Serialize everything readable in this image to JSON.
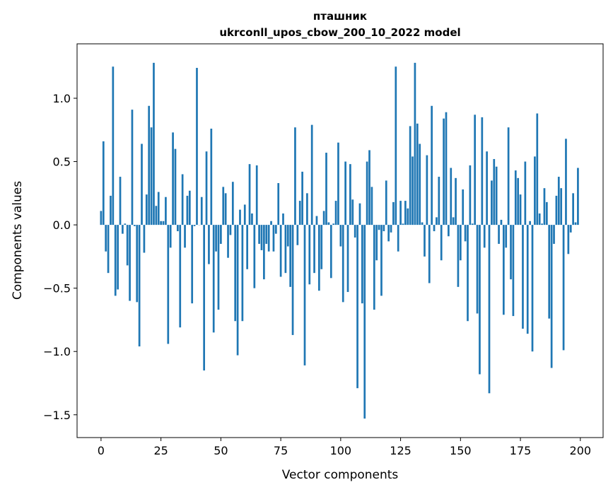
{
  "chart_data": {
    "type": "bar",
    "title": "пташник",
    "subtitle": "ukrconll_upos_cbow_200_10_2022 model",
    "xlabel": "Vector components",
    "ylabel": "Components values",
    "xlim": [
      -10,
      209.5
    ],
    "ylim": [
      -1.68,
      1.43
    ],
    "xticks": [
      0,
      25,
      50,
      75,
      100,
      125,
      150,
      175,
      200
    ],
    "xtick_labels": [
      "0",
      "25",
      "50",
      "75",
      "100",
      "125",
      "150",
      "175",
      "200"
    ],
    "yticks": [
      -1.5,
      -1.0,
      -0.5,
      0.0,
      0.5,
      1.0
    ],
    "ytick_labels": [
      "−1.5",
      "−1.0",
      "−0.5",
      "0.0",
      "0.5",
      "1.0"
    ],
    "grid": false,
    "bar_color": "#1f77b4",
    "values": [
      0.11,
      0.66,
      -0.21,
      -0.38,
      0.23,
      1.25,
      -0.56,
      -0.51,
      0.38,
      -0.07,
      0.01,
      -0.32,
      -0.6,
      0.91,
      -0.01,
      -0.61,
      -0.96,
      0.64,
      -0.22,
      0.24,
      0.94,
      0.77,
      1.28,
      0.15,
      0.26,
      0.03,
      0.03,
      0.22,
      -0.94,
      -0.18,
      0.73,
      0.6,
      -0.05,
      -0.81,
      0.4,
      -0.18,
      0.23,
      0.27,
      -0.62,
      -0.01,
      1.24,
      0.0,
      0.22,
      -1.15,
      0.58,
      -0.31,
      0.76,
      -0.85,
      -0.21,
      -0.67,
      -0.15,
      0.3,
      0.25,
      -0.26,
      -0.08,
      0.34,
      -0.76,
      -1.03,
      0.12,
      -0.76,
      0.16,
      -0.35,
      0.48,
      0.09,
      -0.5,
      0.47,
      -0.15,
      -0.2,
      -0.43,
      -0.15,
      -0.21,
      0.03,
      -0.21,
      -0.07,
      0.33,
      -0.41,
      0.09,
      -0.38,
      -0.17,
      -0.49,
      -0.87,
      0.77,
      -0.16,
      0.19,
      0.42,
      -1.11,
      0.25,
      -0.47,
      0.79,
      -0.38,
      0.07,
      -0.52,
      -0.35,
      0.11,
      0.57,
      0.02,
      -0.42,
      0.01,
      0.19,
      0.65,
      -0.17,
      -0.61,
      0.5,
      -0.53,
      0.48,
      0.2,
      -0.1,
      -1.29,
      0.17,
      -0.62,
      -1.53,
      0.5,
      0.59,
      0.3,
      -0.67,
      -0.28,
      -0.04,
      -0.56,
      -0.05,
      0.35,
      -0.13,
      -0.06,
      0.18,
      1.25,
      -0.21,
      0.19,
      0.01,
      0.19,
      0.13,
      0.78,
      0.54,
      1.28,
      0.8,
      0.64,
      0.02,
      -0.25,
      0.55,
      -0.46,
      0.94,
      -0.05,
      0.06,
      0.38,
      -0.28,
      0.84,
      0.89,
      -0.09,
      0.45,
      0.06,
      0.37,
      -0.49,
      -0.28,
      0.28,
      -0.13,
      -0.76,
      0.47,
      0.01,
      0.87,
      -0.7,
      -1.18,
      0.85,
      -0.18,
      0.58,
      -1.33,
      0.35,
      0.52,
      0.46,
      -0.15,
      0.04,
      -0.71,
      -0.18,
      0.77,
      -0.43,
      -0.72,
      0.43,
      0.37,
      0.24,
      -0.82,
      0.5,
      -0.86,
      0.03,
      -1.0,
      0.54,
      0.88,
      0.09,
      0.01,
      0.29,
      0.18,
      -0.74,
      -1.13,
      -0.15,
      0.23,
      0.38,
      0.29,
      -0.99,
      0.68,
      -0.23,
      -0.06,
      0.25,
      0.02,
      0.45
    ]
  }
}
